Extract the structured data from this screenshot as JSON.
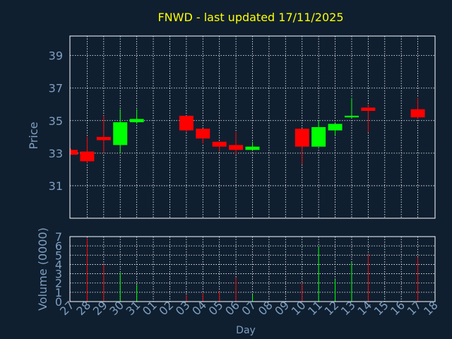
{
  "title": "FNWD - last updated 17/11/2025",
  "colors": {
    "background": "#0f1f30",
    "title": "#ffff00",
    "axis_text": "#7f9fbf",
    "frame": "#ffffff",
    "grid": "#ffffff",
    "up": "#00ff00",
    "down": "#ff0000"
  },
  "chart_data": [
    {
      "type": "candlestick",
      "ylabel": "Price",
      "ylim": [
        29,
        40.2
      ],
      "yticks": [
        31,
        33,
        35,
        37,
        39
      ],
      "grid": true,
      "x_index_range": [
        0,
        22
      ],
      "x_ticks": [
        "27",
        "28",
        "29",
        "30",
        "31",
        "01",
        "02",
        "03",
        "04",
        "05",
        "06",
        "07",
        "08",
        "09",
        "10",
        "11",
        "12",
        "13",
        "14",
        "15",
        "16",
        "17",
        "18"
      ],
      "candles": [
        {
          "i": 0,
          "open": 33.2,
          "high": 33.3,
          "low": 32.9,
          "close": 32.9
        },
        {
          "i": 1,
          "open": 33.1,
          "high": 34.0,
          "low": 32.4,
          "close": 32.5
        },
        {
          "i": 2,
          "open": 34.0,
          "high": 35.3,
          "low": 33.0,
          "close": 33.8
        },
        {
          "i": 3,
          "open": 33.5,
          "high": 35.7,
          "low": 33.0,
          "close": 34.9
        },
        {
          "i": 4,
          "open": 34.9,
          "high": 35.7,
          "low": 34.8,
          "close": 35.1
        },
        {
          "i": 7,
          "open": 35.3,
          "high": 35.3,
          "low": 34.3,
          "close": 34.4
        },
        {
          "i": 8,
          "open": 34.5,
          "high": 34.5,
          "low": 33.6,
          "close": 33.9
        },
        {
          "i": 9,
          "open": 33.7,
          "high": 33.7,
          "low": 33.1,
          "close": 33.4
        },
        {
          "i": 10,
          "open": 33.5,
          "high": 34.3,
          "low": 32.9,
          "close": 33.2
        },
        {
          "i": 11,
          "open": 33.2,
          "high": 33.7,
          "low": 33.2,
          "close": 33.4
        },
        {
          "i": 14,
          "open": 34.5,
          "high": 34.5,
          "low": 32.3,
          "close": 33.4
        },
        {
          "i": 15,
          "open": 33.4,
          "high": 35.0,
          "low": 33.4,
          "close": 34.6
        },
        {
          "i": 16,
          "open": 34.4,
          "high": 34.8,
          "low": 34.1,
          "close": 34.8
        },
        {
          "i": 17,
          "open": 35.2,
          "high": 36.4,
          "low": 35.2,
          "close": 35.3
        },
        {
          "i": 18,
          "open": 35.8,
          "high": 36.0,
          "low": 34.3,
          "close": 35.6
        },
        {
          "i": 21,
          "open": 35.7,
          "high": 36.4,
          "low": 35.1,
          "close": 35.2
        }
      ]
    },
    {
      "type": "bar",
      "ylabel": "Volume (0000)",
      "xlabel": "Day",
      "ylim": [
        0,
        7
      ],
      "yticks": [
        0,
        1,
        2,
        3,
        4,
        5,
        6,
        7
      ],
      "grid": true,
      "x_ticks": [
        "27",
        "28",
        "29",
        "30",
        "31",
        "01",
        "02",
        "03",
        "04",
        "05",
        "06",
        "07",
        "08",
        "09",
        "10",
        "11",
        "12",
        "13",
        "14",
        "15",
        "16",
        "17",
        "18"
      ],
      "bars": [
        {
          "i": 0,
          "value": 0.1,
          "direction": "down"
        },
        {
          "i": 1,
          "value": 6.8,
          "direction": "down"
        },
        {
          "i": 2,
          "value": 4.0,
          "direction": "down"
        },
        {
          "i": 3,
          "value": 3.1,
          "direction": "up"
        },
        {
          "i": 4,
          "value": 1.8,
          "direction": "up"
        },
        {
          "i": 7,
          "value": 0.7,
          "direction": "down"
        },
        {
          "i": 8,
          "value": 0.9,
          "direction": "down"
        },
        {
          "i": 9,
          "value": 1.1,
          "direction": "down"
        },
        {
          "i": 10,
          "value": 2.6,
          "direction": "down"
        },
        {
          "i": 11,
          "value": 0.8,
          "direction": "up"
        },
        {
          "i": 14,
          "value": 2.0,
          "direction": "down"
        },
        {
          "i": 15,
          "value": 5.9,
          "direction": "up"
        },
        {
          "i": 16,
          "value": 2.4,
          "direction": "up"
        },
        {
          "i": 17,
          "value": 4.2,
          "direction": "up"
        },
        {
          "i": 18,
          "value": 5.1,
          "direction": "down"
        },
        {
          "i": 21,
          "value": 4.8,
          "direction": "down"
        }
      ]
    }
  ]
}
